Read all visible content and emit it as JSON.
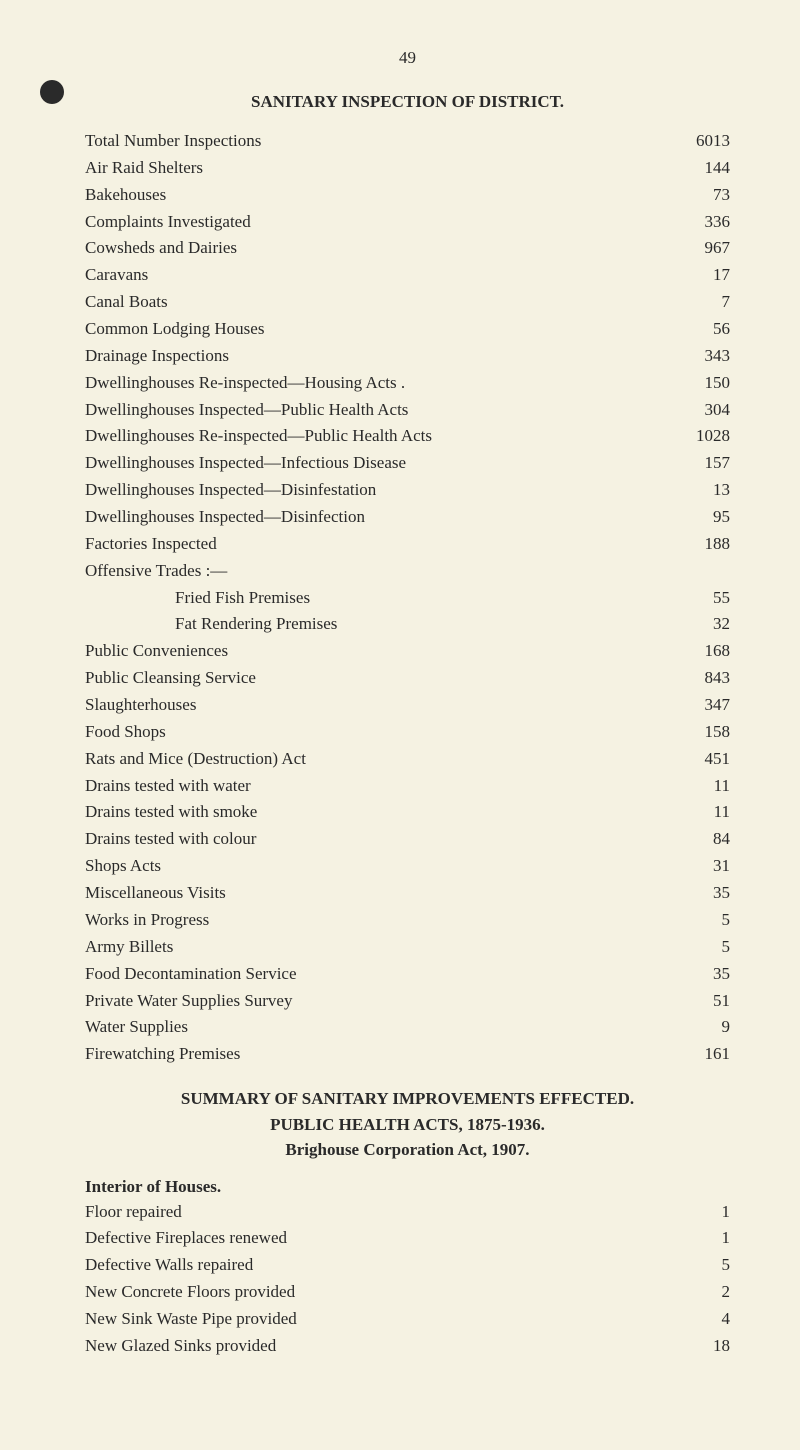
{
  "page_number": "49",
  "bullet_visible": true,
  "background_color": "#f5f2e2",
  "text_color": "#2a2a2a",
  "dot_color": "#8a8678",
  "font_family": "Times New Roman",
  "font_size_pt": 13,
  "section1": {
    "title": "SANITARY INSPECTION OF DISTRICT.",
    "items": [
      {
        "label": "Total Number Inspections",
        "value": "6013",
        "indent": false
      },
      {
        "label": "Air Raid Shelters",
        "value": "144",
        "indent": false
      },
      {
        "label": "Bakehouses",
        "value": "73",
        "indent": false
      },
      {
        "label": "Complaints Investigated",
        "value": "336",
        "indent": false
      },
      {
        "label": "Cowsheds and Dairies",
        "value": "967",
        "indent": false
      },
      {
        "label": "Caravans",
        "value": "17",
        "indent": false
      },
      {
        "label": "Canal Boats",
        "value": "7",
        "indent": false
      },
      {
        "label": "Common Lodging Houses",
        "value": "56",
        "indent": false
      },
      {
        "label": "Drainage Inspections",
        "value": "343",
        "indent": false
      },
      {
        "label": "Dwellinghouses Re-inspected—Housing Acts .",
        "value": "150",
        "indent": false
      },
      {
        "label": "Dwellinghouses Inspected—Public Health Acts",
        "value": "304",
        "indent": false
      },
      {
        "label": "Dwellinghouses Re-inspected—Public Health Acts",
        "value": "1028",
        "indent": false
      },
      {
        "label": "Dwellinghouses Inspected—Infectious Disease",
        "value": "157",
        "indent": false
      },
      {
        "label": "Dwellinghouses Inspected—Disinfestation",
        "value": "13",
        "indent": false
      },
      {
        "label": "Dwellinghouses Inspected—Disinfection",
        "value": "95",
        "indent": false
      },
      {
        "label": "Factories Inspected",
        "value": "188",
        "indent": false
      },
      {
        "label": "Offensive Trades :—",
        "value": "",
        "indent": false
      },
      {
        "label": "Fried Fish Premises",
        "value": "55",
        "indent": true
      },
      {
        "label": "Fat Rendering Premises",
        "value": "32",
        "indent": true
      },
      {
        "label": "Public Conveniences",
        "value": "168",
        "indent": false
      },
      {
        "label": "Public Cleansing Service",
        "value": "843",
        "indent": false
      },
      {
        "label": "Slaughterhouses",
        "value": "347",
        "indent": false
      },
      {
        "label": "Food Shops",
        "value": "158",
        "indent": false
      },
      {
        "label": "Rats and Mice (Destruction) Act",
        "value": "451",
        "indent": false
      },
      {
        "label": "Drains tested with water",
        "value": "11",
        "indent": false
      },
      {
        "label": "Drains tested with smoke",
        "value": "11",
        "indent": false
      },
      {
        "label": "Drains tested with colour",
        "value": "84",
        "indent": false
      },
      {
        "label": "Shops Acts",
        "value": "31",
        "indent": false
      },
      {
        "label": "Miscellaneous Visits",
        "value": "35",
        "indent": false
      },
      {
        "label": "Works in Progress",
        "value": "5",
        "indent": false
      },
      {
        "label": "Army Billets",
        "value": "5",
        "indent": false
      },
      {
        "label": "Food Decontamination Service",
        "value": "35",
        "indent": false
      },
      {
        "label": "Private Water Supplies Survey",
        "value": "51",
        "indent": false
      },
      {
        "label": "Water Supplies",
        "value": "9",
        "indent": false
      },
      {
        "label": "Firewatching Premises",
        "value": "161",
        "indent": false
      }
    ]
  },
  "section2": {
    "title_line1": "SUMMARY OF SANITARY IMPROVEMENTS EFFECTED.",
    "title_line2": "PUBLIC HEALTH ACTS, 1875-1936.",
    "title_line3": "Brighouse Corporation Act, 1907.",
    "subsection_title": "Interior of Houses.",
    "items": [
      {
        "label": "Floor repaired",
        "value": "1"
      },
      {
        "label": "Defective Fireplaces renewed",
        "value": "1"
      },
      {
        "label": "Defective Walls repaired",
        "value": "5"
      },
      {
        "label": "New Concrete Floors provided",
        "value": "2"
      },
      {
        "label": "New Sink Waste Pipe provided",
        "value": "4"
      },
      {
        "label": "New Glazed Sinks provided",
        "value": "18"
      }
    ]
  }
}
